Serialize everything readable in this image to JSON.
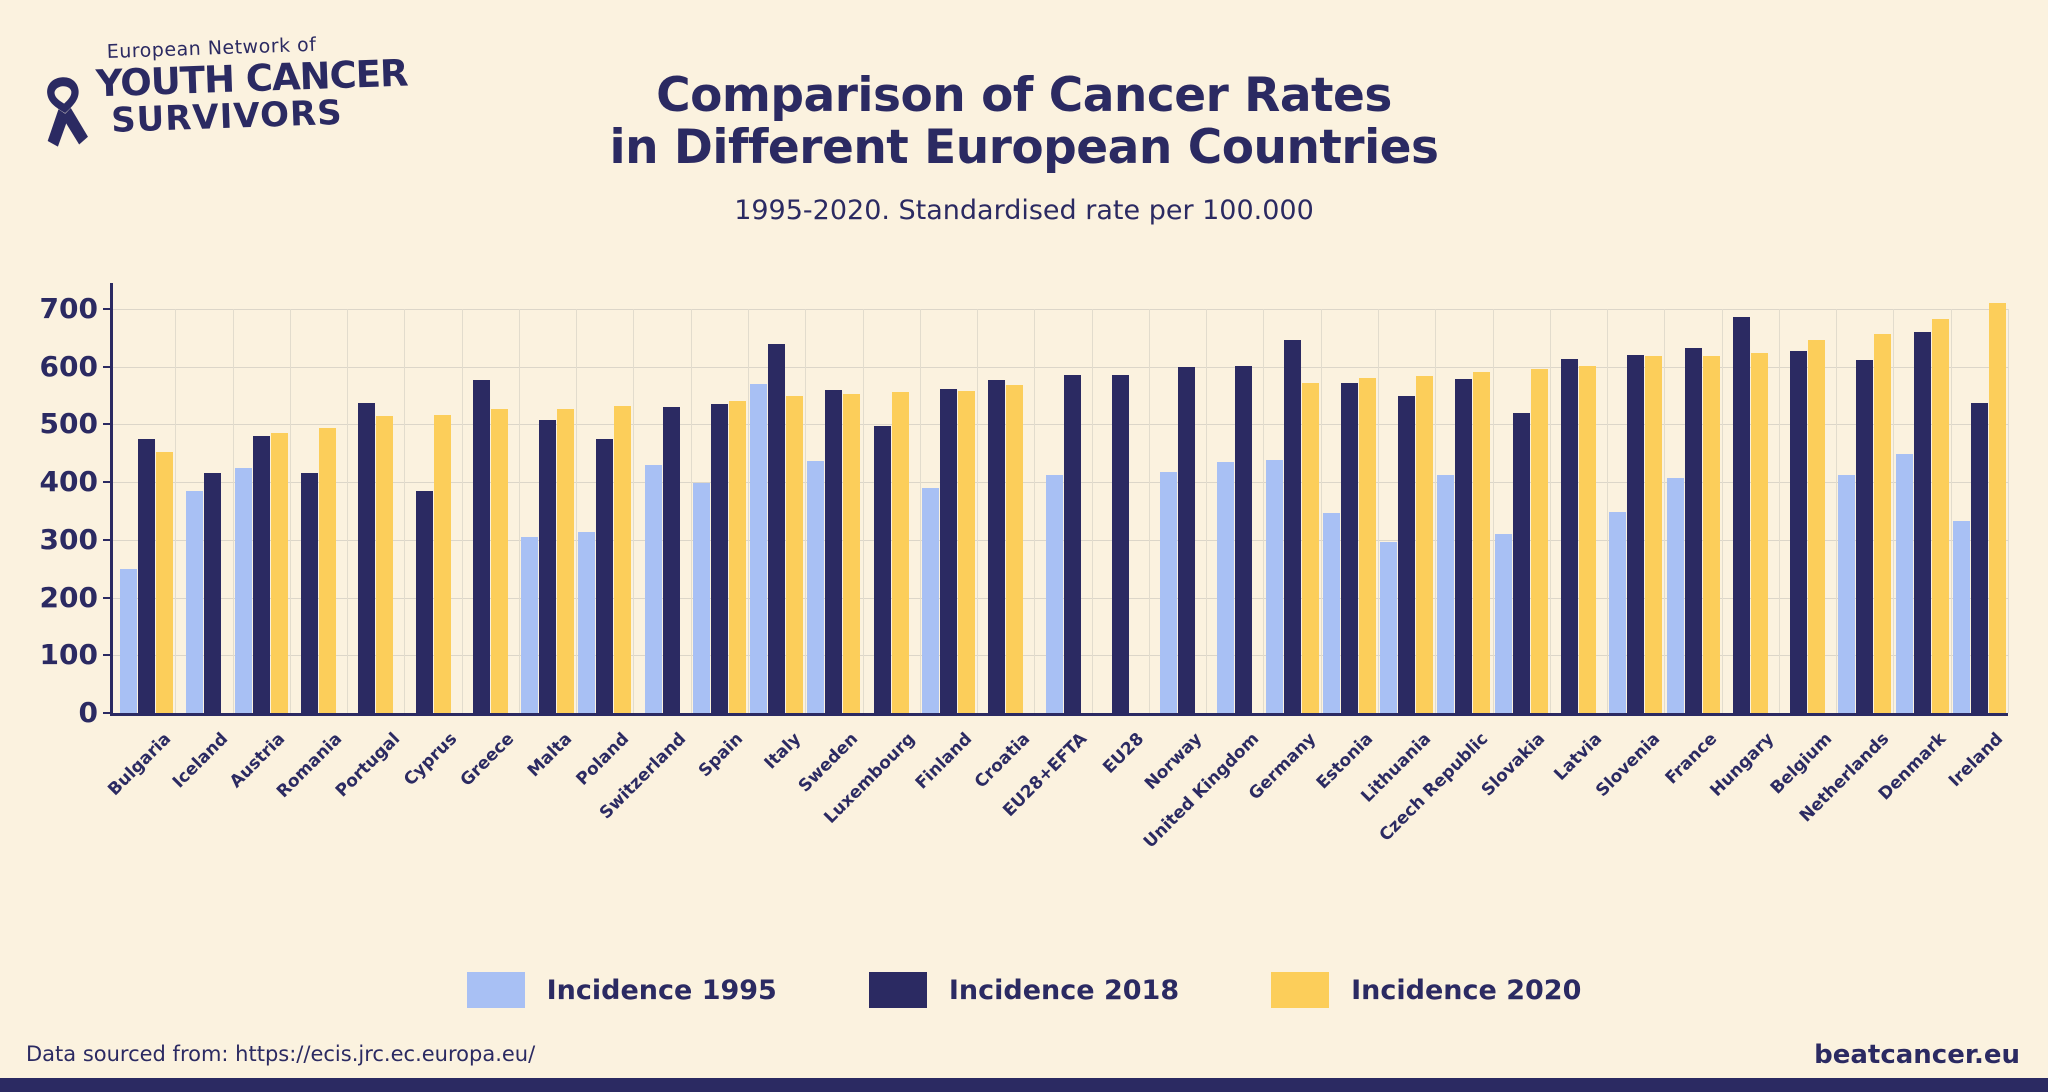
{
  "logo": {
    "tagline": "European Network of",
    "line1": "YOUTH CANCER",
    "line2": "SURVIVORS"
  },
  "title": {
    "line1": "Comparison of Cancer Rates",
    "line2": "in Different European Countries"
  },
  "subtitle": "1995-2020. Standardised rate per 100.000",
  "colors": {
    "background": "#fbf2df",
    "navy": "#2b2a62",
    "light_blue": "#a8c0f4",
    "yellow": "#fcce5a",
    "gridline": "#dcd6c9"
  },
  "legend": [
    {
      "label": "Incidence 1995",
      "color": "#a8c0f4"
    },
    {
      "label": "Incidence 2018",
      "color": "#2b2a62"
    },
    {
      "label": "Incidence 2020",
      "color": "#fcce5a"
    }
  ],
  "footer": {
    "source": "Data sourced from: https://ecis.jrc.ec.europa.eu/",
    "site": "beatcancer.eu"
  },
  "chart_data": {
    "type": "bar",
    "title": "Comparison of Cancer Rates in Different European Countries",
    "subtitle": "1995-2020. Standardised rate per 100.000",
    "ylabel": "Standardised rate per 100.000",
    "ylim": [
      0,
      700
    ],
    "yticks": [
      0,
      100,
      200,
      300,
      400,
      500,
      600,
      700
    ],
    "grid": true,
    "legend_position": "bottom",
    "categories": [
      "Bulgaria",
      "Iceland",
      "Austria",
      "Romania",
      "Portugal",
      "Cyprus",
      "Greece",
      "Malta",
      "Poland",
      "Switzerland",
      "Spain",
      "Italy",
      "Sweden",
      "Luxembourg",
      "Finland",
      "Croatia",
      "EU28+EFTA",
      "EU28",
      "Norway",
      "United Kingdom",
      "Germany",
      "Estonia",
      "Lithuania",
      "Czech Republic",
      "Slovakia",
      "Latvia",
      "Slovenia",
      "France",
      "Hungary",
      "Belgium",
      "Netherlands",
      "Denmark",
      "Ireland"
    ],
    "series": [
      {
        "name": "Incidence 1995",
        "color": "#a8c0f4",
        "values": [
          250,
          385,
          424,
          null,
          null,
          null,
          null,
          305,
          314,
          430,
          399,
          570,
          436,
          null,
          389,
          null,
          413,
          null,
          417,
          435,
          439,
          347,
          297,
          413,
          310,
          null,
          348,
          407,
          null,
          null,
          412,
          448,
          333
        ]
      },
      {
        "name": "Incidence 2018",
        "color": "#2b2a62",
        "values": [
          475,
          415,
          480,
          415,
          537,
          384,
          577,
          508,
          474,
          531,
          535,
          639,
          559,
          497,
          561,
          577,
          586,
          586,
          599,
          601,
          646,
          572,
          550,
          578,
          520,
          614,
          621,
          632,
          687,
          627,
          611,
          660,
          537
        ]
      },
      {
        "name": "Incidence 2020",
        "color": "#fcce5a",
        "values": [
          453,
          null,
          486,
          493,
          514,
          517,
          526,
          526,
          532,
          null,
          540,
          549,
          553,
          556,
          558,
          569,
          null,
          null,
          null,
          null,
          572,
          581,
          584,
          591,
          596,
          601,
          618,
          618,
          623,
          646,
          656,
          682,
          710
        ]
      }
    ]
  }
}
